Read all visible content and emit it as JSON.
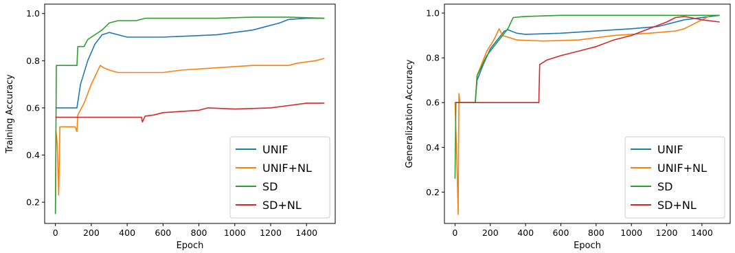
{
  "chart_data": [
    {
      "type": "line",
      "xlabel": "Epoch",
      "ylabel": "Training Accuracy",
      "xlim": [
        -60,
        1560
      ],
      "ylim": [
        0.11,
        1.04
      ],
      "xticks": [
        0,
        200,
        400,
        600,
        800,
        1000,
        1200,
        1400
      ],
      "yticks": [
        0.2,
        0.4,
        0.6,
        0.8,
        1.0
      ],
      "ytick_labels": [
        "0.2",
        "0.4",
        "0.6",
        "0.8",
        "1.0"
      ],
      "legend_position": "lower-right",
      "series": [
        {
          "name": "UNIF",
          "color": "#1f77b4",
          "points": [
            [
              0,
              0.6
            ],
            [
              120,
              0.6
            ],
            [
              140,
              0.7
            ],
            [
              180,
              0.8
            ],
            [
              220,
              0.87
            ],
            [
              260,
              0.91
            ],
            [
              300,
              0.92
            ],
            [
              350,
              0.91
            ],
            [
              400,
              0.9
            ],
            [
              600,
              0.9
            ],
            [
              900,
              0.91
            ],
            [
              1100,
              0.93
            ],
            [
              1250,
              0.96
            ],
            [
              1300,
              0.975
            ],
            [
              1400,
              0.98
            ],
            [
              1500,
              0.98
            ]
          ]
        },
        {
          "name": "UNIF+NL",
          "color": "#ff7f0e",
          "points": [
            [
              0,
              0.15
            ],
            [
              3,
              0.5
            ],
            [
              10,
              0.45
            ],
            [
              18,
              0.23
            ],
            [
              25,
              0.52
            ],
            [
              110,
              0.52
            ],
            [
              120,
              0.5
            ],
            [
              125,
              0.57
            ],
            [
              160,
              0.62
            ],
            [
              200,
              0.7
            ],
            [
              250,
              0.78
            ],
            [
              270,
              0.77
            ],
            [
              300,
              0.76
            ],
            [
              350,
              0.75
            ],
            [
              600,
              0.75
            ],
            [
              700,
              0.76
            ],
            [
              900,
              0.77
            ],
            [
              1100,
              0.78
            ],
            [
              1300,
              0.78
            ],
            [
              1350,
              0.79
            ],
            [
              1450,
              0.8
            ],
            [
              1500,
              0.81
            ]
          ]
        },
        {
          "name": "SD",
          "color": "#2ca02c",
          "points": [
            [
              0,
              0.15
            ],
            [
              5,
              0.78
            ],
            [
              120,
              0.78
            ],
            [
              125,
              0.86
            ],
            [
              160,
              0.86
            ],
            [
              180,
              0.89
            ],
            [
              260,
              0.93
            ],
            [
              300,
              0.96
            ],
            [
              350,
              0.97
            ],
            [
              450,
              0.97
            ],
            [
              500,
              0.98
            ],
            [
              700,
              0.98
            ],
            [
              900,
              0.98
            ],
            [
              1100,
              0.985
            ],
            [
              1300,
              0.985
            ],
            [
              1500,
              0.98
            ]
          ]
        },
        {
          "name": "SD+NL",
          "color": "#d62728",
          "points": [
            [
              0,
              0.56
            ],
            [
              480,
              0.56
            ],
            [
              485,
              0.54
            ],
            [
              500,
              0.565
            ],
            [
              550,
              0.57
            ],
            [
              600,
              0.58
            ],
            [
              800,
              0.59
            ],
            [
              850,
              0.6
            ],
            [
              1000,
              0.595
            ],
            [
              1200,
              0.6
            ],
            [
              1300,
              0.61
            ],
            [
              1400,
              0.62
            ],
            [
              1500,
              0.62
            ]
          ]
        }
      ]
    },
    {
      "type": "line",
      "xlabel": "Epoch",
      "ylabel": "Generalization Accuracy",
      "xlim": [
        -60,
        1560
      ],
      "ylim": [
        0.06,
        1.04
      ],
      "xticks": [
        0,
        200,
        400,
        600,
        800,
        1000,
        1200,
        1400
      ],
      "yticks": [
        0.2,
        0.4,
        0.6,
        0.8,
        1.0
      ],
      "ytick_labels": [
        "0.2",
        "0.4",
        "0.6",
        "0.8",
        "1.0"
      ],
      "legend_position": "lower-right",
      "series": [
        {
          "name": "UNIF",
          "color": "#1f77b4",
          "points": [
            [
              0,
              0.6
            ],
            [
              115,
              0.6
            ],
            [
              125,
              0.7
            ],
            [
              160,
              0.77
            ],
            [
              200,
              0.84
            ],
            [
              250,
              0.89
            ],
            [
              280,
              0.92
            ],
            [
              300,
              0.925
            ],
            [
              350,
              0.91
            ],
            [
              400,
              0.905
            ],
            [
              600,
              0.91
            ],
            [
              800,
              0.92
            ],
            [
              1000,
              0.93
            ],
            [
              1150,
              0.94
            ],
            [
              1300,
              0.97
            ],
            [
              1500,
              0.99
            ]
          ]
        },
        {
          "name": "UNIF+NL",
          "color": "#ff7f0e",
          "points": [
            [
              0,
              0.6
            ],
            [
              10,
              0.35
            ],
            [
              18,
              0.1
            ],
            [
              22,
              0.64
            ],
            [
              28,
              0.6
            ],
            [
              115,
              0.6
            ],
            [
              125,
              0.72
            ],
            [
              180,
              0.83
            ],
            [
              220,
              0.88
            ],
            [
              250,
              0.93
            ],
            [
              270,
              0.9
            ],
            [
              350,
              0.88
            ],
            [
              500,
              0.875
            ],
            [
              700,
              0.88
            ],
            [
              900,
              0.9
            ],
            [
              1100,
              0.91
            ],
            [
              1250,
              0.92
            ],
            [
              1300,
              0.93
            ],
            [
              1400,
              0.97
            ],
            [
              1450,
              0.99
            ],
            [
              1500,
              0.99
            ]
          ]
        },
        {
          "name": "SD",
          "color": "#2ca02c",
          "points": [
            [
              0,
              0.26
            ],
            [
              5,
              0.6
            ],
            [
              115,
              0.6
            ],
            [
              125,
              0.72
            ],
            [
              180,
              0.81
            ],
            [
              240,
              0.87
            ],
            [
              300,
              0.93
            ],
            [
              330,
              0.98
            ],
            [
              400,
              0.985
            ],
            [
              600,
              0.99
            ],
            [
              800,
              0.99
            ],
            [
              1000,
              0.99
            ],
            [
              1300,
              0.99
            ],
            [
              1500,
              0.99
            ]
          ]
        },
        {
          "name": "SD+NL",
          "color": "#d62728",
          "points": [
            [
              0,
              0.6
            ],
            [
              475,
              0.6
            ],
            [
              480,
              0.77
            ],
            [
              520,
              0.79
            ],
            [
              600,
              0.81
            ],
            [
              700,
              0.83
            ],
            [
              800,
              0.85
            ],
            [
              900,
              0.88
            ],
            [
              1000,
              0.9
            ],
            [
              1100,
              0.93
            ],
            [
              1200,
              0.96
            ],
            [
              1250,
              0.98
            ],
            [
              1300,
              0.985
            ],
            [
              1400,
              0.97
            ],
            [
              1500,
              0.96
            ]
          ]
        }
      ]
    }
  ]
}
